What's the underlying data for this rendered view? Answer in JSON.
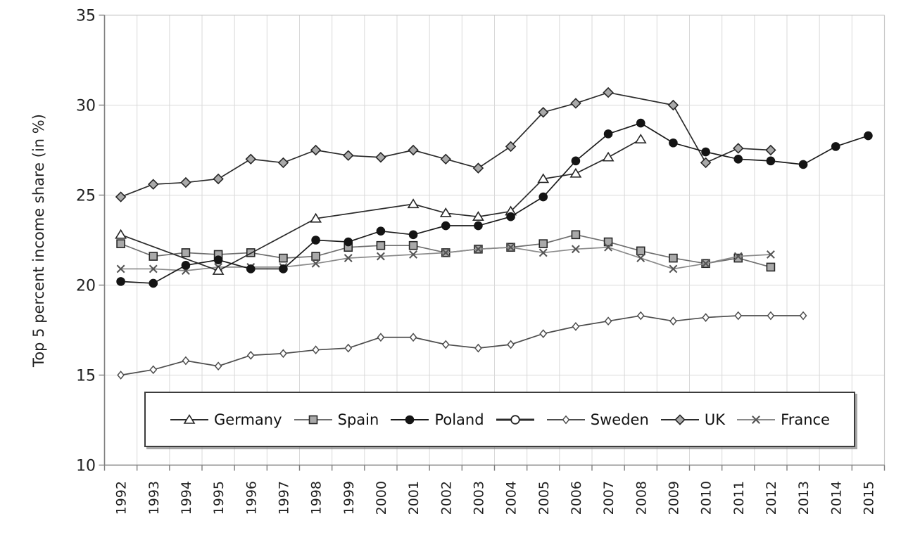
{
  "chart_data": {
    "type": "line",
    "title": "",
    "xlabel": "",
    "ylabel": "Top 5 percent income share (in %)",
    "ylim": [
      10,
      35
    ],
    "ytick_interval": 5,
    "ytick_labels": [
      "10",
      "15",
      "20",
      "25",
      "30",
      "35"
    ],
    "grid": true,
    "legend_position": "bottom-center-boxed",
    "categories": [
      "1992",
      "1993",
      "1994",
      "1995",
      "1996",
      "1997",
      "1998",
      "1999",
      "2000",
      "2001",
      "2002",
      "2003",
      "2004",
      "2005",
      "2006",
      "2007",
      "2008",
      "2009",
      "2010",
      "2011",
      "2012",
      "2013",
      "2014",
      "2015"
    ],
    "series": [
      {
        "name": "Germany",
        "marker": "triangle-open",
        "line_color": "#2b2b2b",
        "values": [
          22.8,
          null,
          null,
          20.8,
          null,
          null,
          23.7,
          null,
          null,
          24.5,
          24.0,
          23.8,
          24.1,
          25.9,
          26.2,
          27.1,
          28.1,
          null,
          null,
          null,
          null,
          null,
          null,
          null
        ]
      },
      {
        "name": "Spain",
        "marker": "square-gray",
        "line_color": "#6e6e6e",
        "values": [
          22.3,
          21.6,
          21.8,
          21.7,
          21.8,
          21.5,
          21.6,
          22.1,
          22.2,
          22.2,
          21.8,
          22.0,
          22.1,
          22.3,
          22.8,
          22.4,
          21.9,
          21.5,
          21.2,
          21.5,
          21.0,
          null,
          null,
          null
        ]
      },
      {
        "name": "Poland",
        "marker": "circle-filled",
        "line_color": "#1a1a1a",
        "values": [
          20.2,
          20.1,
          21.1,
          21.4,
          20.9,
          20.9,
          22.5,
          22.4,
          23.0,
          22.8,
          23.3,
          23.3,
          23.8,
          24.9,
          26.9,
          28.4,
          29.0,
          27.9,
          27.4,
          27.0,
          26.9,
          26.7,
          27.7,
          28.3
        ]
      },
      {
        "name": "",
        "marker": "circle-open",
        "line_color": "#2b2b2b",
        "values": [
          null,
          null,
          null,
          null,
          null,
          null,
          null,
          null,
          null,
          null,
          null,
          null,
          null,
          null,
          null,
          null,
          null,
          null,
          null,
          null,
          null,
          null,
          null,
          null
        ]
      },
      {
        "name": "Sweden",
        "marker": "diamond-open",
        "line_color": "#4d4d4d",
        "values": [
          15.0,
          15.3,
          15.8,
          15.5,
          16.1,
          16.2,
          16.4,
          16.5,
          17.1,
          17.1,
          16.7,
          16.5,
          16.7,
          17.3,
          17.7,
          18.0,
          18.3,
          18.0,
          18.2,
          18.3,
          18.3,
          18.3,
          null,
          null
        ]
      },
      {
        "name": "UK",
        "marker": "diamond-gray",
        "line_color": "#2b2b2b",
        "values": [
          24.9,
          25.6,
          25.7,
          25.9,
          27.0,
          26.8,
          27.5,
          27.2,
          27.1,
          27.5,
          27.0,
          26.5,
          27.7,
          29.6,
          30.1,
          30.7,
          null,
          30.0,
          26.8,
          27.6,
          27.5,
          null,
          null,
          null
        ]
      },
      {
        "name": "France",
        "marker": "x",
        "line_color": "#8a8a8a",
        "values": [
          20.9,
          20.9,
          20.8,
          21.0,
          21.0,
          21.0,
          21.2,
          21.5,
          21.6,
          21.7,
          21.8,
          22.0,
          22.1,
          21.8,
          22.0,
          22.1,
          21.5,
          20.9,
          21.2,
          21.6,
          21.7,
          null,
          null,
          null
        ]
      }
    ]
  },
  "style": {
    "axis_color": "#7f7f7f",
    "grid_color": "#d9d9d9",
    "border_color": "#c8c8c8",
    "tick_label_color": "#1f1f1f",
    "marker_fill_gray": "#a9a9a9",
    "marker_stroke": "#262626"
  }
}
